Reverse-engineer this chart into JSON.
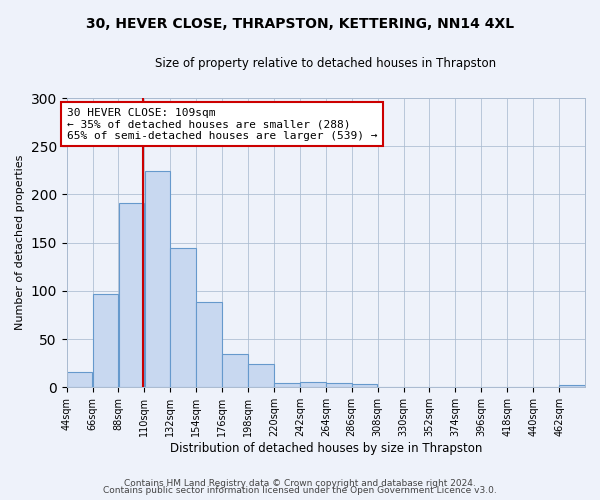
{
  "title_line1": "30, HEVER CLOSE, THRAPSTON, KETTERING, NN14 4XL",
  "title_line2": "Size of property relative to detached houses in Thrapston",
  "xlabel": "Distribution of detached houses by size in Thrapston",
  "ylabel": "Number of detached properties",
  "bar_edges": [
    44,
    66,
    88,
    110,
    132,
    154,
    176,
    198,
    220,
    242,
    264,
    286,
    308,
    330,
    352,
    374,
    396,
    418,
    440,
    462,
    484
  ],
  "bar_heights": [
    16,
    97,
    191,
    224,
    144,
    88,
    35,
    24,
    5,
    6,
    5,
    3,
    0,
    0,
    0,
    0,
    0,
    0,
    0,
    2
  ],
  "bar_color": "#c8d8f0",
  "bar_edge_color": "#6699cc",
  "property_size": 109,
  "vline_color": "#cc0000",
  "annotation_text": "30 HEVER CLOSE: 109sqm\n← 35% of detached houses are smaller (288)\n65% of semi-detached houses are larger (539) →",
  "annotation_box_color": "#cc0000",
  "ylim": [
    0,
    300
  ],
  "yticks": [
    0,
    50,
    100,
    150,
    200,
    250,
    300
  ],
  "footnote_line1": "Contains HM Land Registry data © Crown copyright and database right 2024.",
  "footnote_line2": "Contains public sector information licensed under the Open Government Licence v3.0.",
  "background_color": "#eef2fa",
  "grid_color": "#aabbd0"
}
